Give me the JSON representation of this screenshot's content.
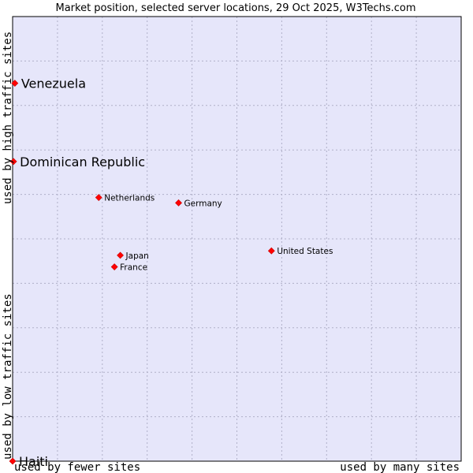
{
  "chart_data": {
    "type": "scatter",
    "title": "Market position, selected server locations, 29 Oct 2025, W3Techs.com",
    "xlabel_left": "used by fewer sites",
    "xlabel_right": "used by many sites",
    "ylabel_bottom": "used by low traffic sites",
    "ylabel_top": "used by high traffic sites",
    "xlim": [
      0,
      100
    ],
    "ylim": [
      0,
      100
    ],
    "grid": true,
    "colors": {
      "plot_bg": "#e6e6fa",
      "grid": "#b0b0c8",
      "marker": "#ff0000",
      "marker_edge": "#cc0000",
      "border": "#000000"
    },
    "points": [
      {
        "name": "Venezuela",
        "x": 0.5,
        "y": 85.0,
        "emphasis": true
      },
      {
        "name": "Dominican Republic",
        "x": 0.2,
        "y": 67.4,
        "emphasis": true
      },
      {
        "name": "Netherlands",
        "x": 19.2,
        "y": 59.3,
        "emphasis": false
      },
      {
        "name": "Germany",
        "x": 37.0,
        "y": 58.1,
        "emphasis": false
      },
      {
        "name": "United States",
        "x": 57.7,
        "y": 47.3,
        "emphasis": false
      },
      {
        "name": "Japan",
        "x": 24.0,
        "y": 46.3,
        "emphasis": false
      },
      {
        "name": "France",
        "x": 22.7,
        "y": 43.7,
        "emphasis": false
      },
      {
        "name": "Haiti",
        "x": 0.0,
        "y": 0.0,
        "emphasis": true
      }
    ]
  }
}
